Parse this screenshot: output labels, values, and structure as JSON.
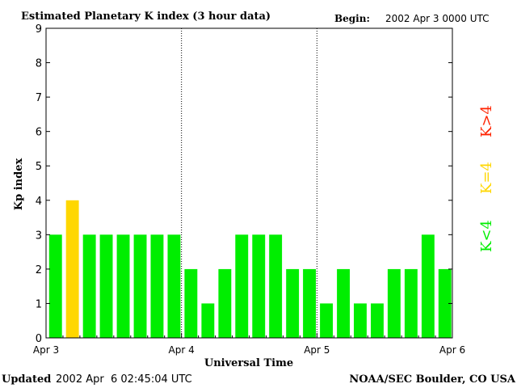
{
  "chart_data": {
    "type": "bar",
    "title": "Estimated Planetary K index (3 hour data)",
    "begin_label": "Begin:",
    "begin_value": "2002 Apr 3 0000 UTC",
    "ylabel": "Kp index",
    "xlabel": "Universal Time",
    "ylim": [
      0,
      9
    ],
    "yticks": [
      "0",
      "1",
      "2",
      "3",
      "4",
      "5",
      "6",
      "7",
      "8",
      "9"
    ],
    "xticks": [
      "Apr 3",
      "Apr 4",
      "Apr 5",
      "Apr 6"
    ],
    "values": [
      3,
      4,
      3,
      3,
      3,
      3,
      3,
      3,
      2,
      1,
      2,
      3,
      3,
      3,
      2,
      2,
      1,
      2,
      1,
      1,
      2,
      2,
      3,
      2
    ],
    "threshold": 4,
    "colors": {
      "below": "#00ee00",
      "equal": "#ffd700",
      "above": "#ff2200"
    },
    "legend": {
      "above": "K>4",
      "equal": "K=4",
      "below": "K<4"
    },
    "grid": false
  },
  "footer": {
    "updated_label": "Updated",
    "updated_value": "2002 Apr  6 02:45:04 UTC",
    "source": "NOAA/SEC Boulder, CO USA"
  }
}
